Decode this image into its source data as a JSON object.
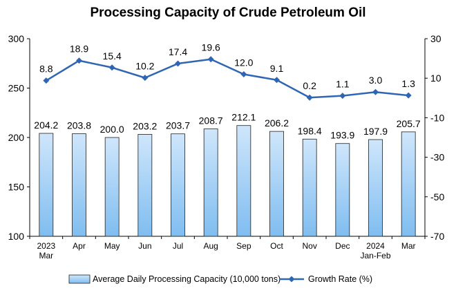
{
  "chart_data": {
    "type": "bar",
    "title": "Processing Capacity of Crude Petroleum Oil",
    "categories": [
      [
        "2023",
        "Mar"
      ],
      [
        "Apr"
      ],
      [
        "May"
      ],
      [
        "Jun"
      ],
      [
        "Jul"
      ],
      [
        "Aug"
      ],
      [
        "Sep"
      ],
      [
        "Oct"
      ],
      [
        "Nov"
      ],
      [
        "Dec"
      ],
      [
        "2024",
        "Jan-Feb"
      ],
      [
        "Mar"
      ]
    ],
    "series": [
      {
        "name": "Average Daily Processing Capacity (10,000 tons)",
        "type": "bar",
        "axis": "left",
        "values": [
          204.2,
          203.8,
          200.0,
          203.2,
          203.7,
          208.7,
          212.1,
          206.2,
          198.4,
          193.9,
          197.9,
          205.7
        ],
        "labels": [
          "204.2",
          "203.8",
          "200.0",
          "203.2",
          "203.7",
          "208.7",
          "212.1",
          "206.2",
          "198.4",
          "193.9",
          "197.9",
          "205.7"
        ]
      },
      {
        "name": "Growth Rate (%)",
        "type": "line",
        "axis": "right",
        "values": [
          8.8,
          18.9,
          15.4,
          10.2,
          17.4,
          19.6,
          12.0,
          9.1,
          0.2,
          1.1,
          3.0,
          1.3
        ],
        "labels": [
          "8.8",
          "18.9",
          "15.4",
          "10.2",
          "17.4",
          "19.6",
          "12.0",
          "9.1",
          "0.2",
          "1.1",
          "3.0",
          "1.3"
        ]
      }
    ],
    "ylim_left": [
      100,
      300
    ],
    "yticks_left": [
      "100",
      "150",
      "200",
      "250",
      "300"
    ],
    "ylim_right": [
      -70,
      30
    ],
    "yticks_right": [
      "-70",
      "-50",
      "-30",
      "-10",
      "10",
      "30"
    ],
    "grid": false,
    "legend_position": "bottom",
    "colors": {
      "bar_fill_top": "#cfe6fb",
      "bar_fill_bottom": "#7fbdf0",
      "bar_stroke": "#1f1f1f",
      "line": "#2f66b3",
      "axis": "#000000",
      "text": "#000000"
    }
  }
}
